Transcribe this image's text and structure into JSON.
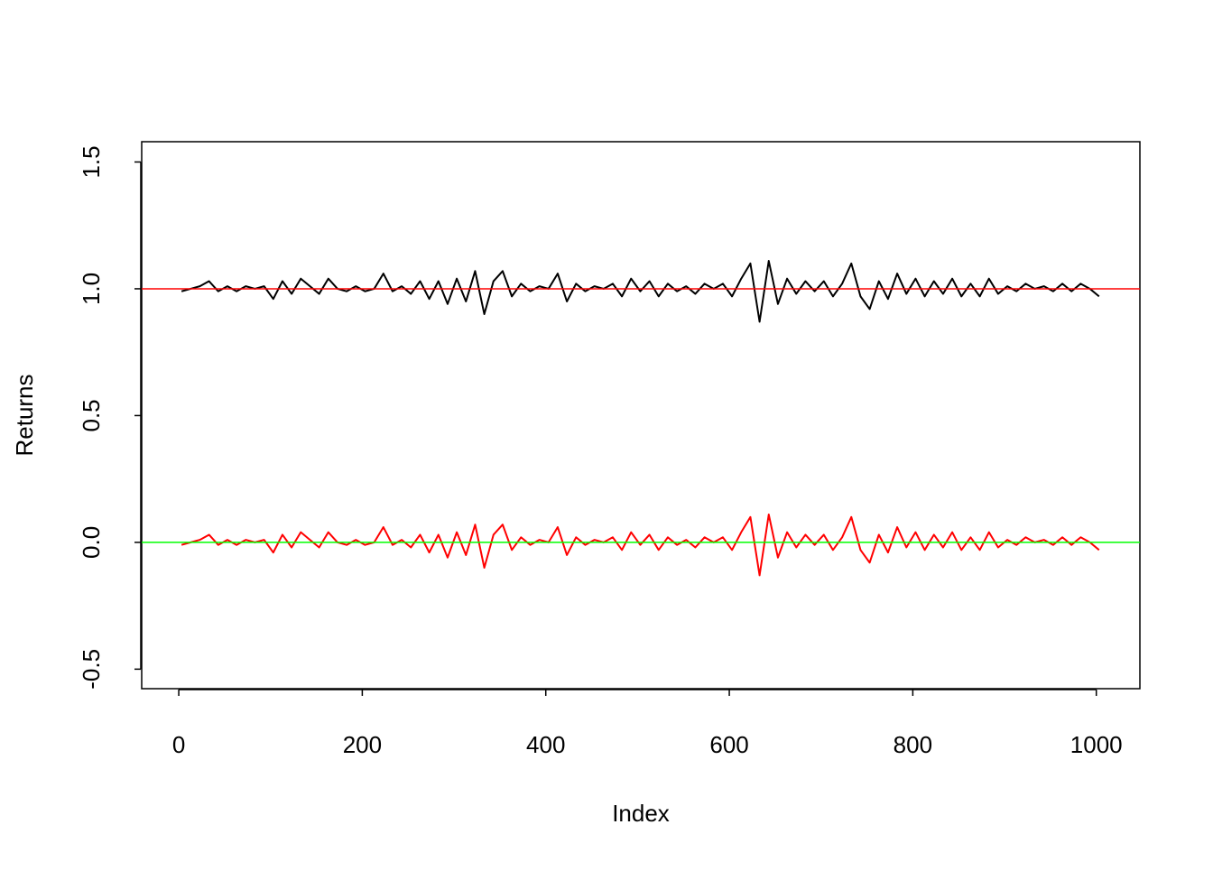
{
  "chart_data": {
    "type": "line",
    "x_label": "Index",
    "y_label": "Returns",
    "x": [
      3,
      13,
      23,
      33,
      43,
      53,
      63,
      73,
      83,
      93,
      103,
      113,
      123,
      133,
      143,
      153,
      163,
      173,
      183,
      193,
      203,
      213,
      223,
      233,
      243,
      253,
      263,
      273,
      283,
      293,
      303,
      313,
      323,
      333,
      343,
      353,
      363,
      373,
      383,
      393,
      403,
      413,
      423,
      433,
      443,
      453,
      463,
      473,
      483,
      493,
      503,
      513,
      523,
      533,
      543,
      553,
      563,
      573,
      583,
      593,
      603,
      613,
      623,
      633,
      643,
      653,
      663,
      673,
      683,
      693,
      703,
      713,
      723,
      733,
      743,
      753,
      763,
      773,
      783,
      793,
      803,
      813,
      823,
      833,
      843,
      853,
      863,
      873,
      883,
      893,
      903,
      913,
      923,
      933,
      943,
      953,
      963,
      973,
      983,
      993,
      1003
    ],
    "series": [
      {
        "color": "#000000",
        "values": [
          0.99,
          1,
          1.01,
          1.03,
          0.99,
          1.01,
          0.99,
          1.01,
          1,
          1.01,
          0.96,
          1.03,
          0.98,
          1.04,
          1.01,
          0.98,
          1.04,
          1,
          0.99,
          1.01,
          0.99,
          1,
          1.06,
          0.99,
          1.01,
          0.98,
          1.03,
          0.96,
          1.03,
          0.94,
          1.04,
          0.95,
          1.07,
          0.9,
          1.03,
          1.07,
          0.97,
          1.02,
          0.99,
          1.01,
          1,
          1.06,
          0.95,
          1.02,
          0.99,
          1.01,
          1,
          1.02,
          0.97,
          1.04,
          0.99,
          1.03,
          0.97,
          1.02,
          0.99,
          1.01,
          0.98,
          1.02,
          1,
          1.02,
          0.97,
          1.04,
          1.1,
          0.87,
          1.11,
          0.94,
          1.04,
          0.98,
          1.03,
          0.99,
          1.03,
          0.97,
          1.02,
          1.1,
          0.97,
          0.92,
          1.03,
          0.96,
          1.06,
          0.98,
          1.04,
          0.97,
          1.03,
          0.98,
          1.04,
          0.97,
          1.02,
          0.97,
          1.04,
          0.98,
          1.01,
          0.99,
          1.02,
          1,
          1.01,
          0.99,
          1.02,
          0.99,
          1.02,
          1,
          0.97
        ]
      },
      {
        "color": "#ff0000",
        "values": [
          -0.01,
          0,
          0.01,
          0.03,
          -0.01,
          0.01,
          -0.01,
          0.01,
          0,
          0.01,
          -0.04,
          0.03,
          -0.02,
          0.04,
          0.01,
          -0.02,
          0.04,
          0,
          -0.01,
          0.01,
          -0.01,
          0,
          0.06,
          -0.01,
          0.01,
          -0.02,
          0.03,
          -0.04,
          0.03,
          -0.06,
          0.04,
          -0.05,
          0.07,
          -0.1,
          0.03,
          0.07,
          -0.03,
          0.02,
          -0.01,
          0.01,
          0,
          0.06,
          -0.05,
          0.02,
          -0.01,
          0.01,
          0,
          0.02,
          -0.03,
          0.04,
          -0.01,
          0.03,
          -0.03,
          0.02,
          -0.01,
          0.01,
          -0.02,
          0.02,
          0,
          0.02,
          -0.03,
          0.04,
          0.1,
          -0.13,
          0.11,
          -0.06,
          0.04,
          -0.02,
          0.03,
          -0.01,
          0.03,
          -0.03,
          0.02,
          0.1,
          -0.03,
          -0.08,
          0.03,
          -0.04,
          0.06,
          -0.02,
          0.04,
          -0.03,
          0.03,
          -0.02,
          0.04,
          -0.03,
          0.02,
          -0.03,
          0.04,
          -0.02,
          0.01,
          -0.01,
          0.02,
          0,
          0.01,
          -0.01,
          0.02,
          -0.01,
          0.02,
          0,
          -0.03
        ]
      }
    ],
    "hlines": [
      {
        "value": 1,
        "color": "#ff0000"
      },
      {
        "value": 0,
        "color": "#00ff00"
      }
    ],
    "xlim": [
      -40.4,
      1047.5
    ],
    "ylim": [
      -0.577,
      1.58
    ],
    "xticks": [
      0,
      200,
      400,
      600,
      800,
      1000
    ],
    "yticks": [
      -0.5,
      {
        "value": 0,
        "label": "0.0"
      },
      0.5,
      {
        "value": 1,
        "label": "1.0"
      },
      1.5
    ]
  }
}
